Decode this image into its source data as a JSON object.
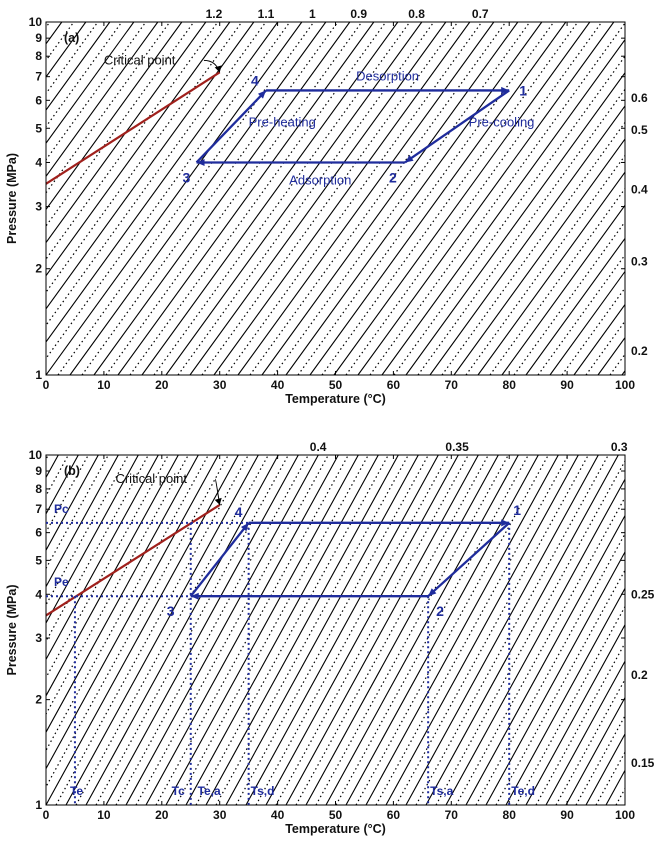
{
  "chart_data": [
    {
      "panel": "(a)",
      "type": "line",
      "xlabel": "Temperature (°C)",
      "ylabel": "Pressure (MPa)",
      "xlim": [
        0,
        100
      ],
      "ylim": [
        1,
        10
      ],
      "yscale": "log",
      "xticks": [
        "0",
        "10",
        "20",
        "30",
        "40",
        "50",
        "60",
        "70",
        "80",
        "90",
        "100"
      ],
      "yticks": [
        "1",
        "2",
        "3",
        "4",
        "5",
        "6",
        "7",
        "8",
        "9",
        "10"
      ],
      "top_labels": [
        "1.2",
        "1.1",
        "1",
        "0.9",
        "0.8",
        "0.7"
      ],
      "right_labels": [
        "0.6",
        "0.5",
        "0.4",
        "0.3",
        "0.2"
      ],
      "saturation_line": {
        "x": [
          0,
          30
        ],
        "y": [
          3.48,
          7.2
        ]
      },
      "critical_point": {
        "x": 30,
        "y": 7.2,
        "label": "Critical point"
      },
      "cycle": {
        "points": [
          {
            "label": "1",
            "x": 80,
            "y": 6.4
          },
          {
            "label": "2",
            "x": 62,
            "y": 4.0
          },
          {
            "label": "3",
            "x": 26,
            "y": 4.0
          },
          {
            "label": "4",
            "x": 38,
            "y": 6.4
          }
        ],
        "processes": [
          "Desorption",
          "Pre-cooling",
          "Adsorption",
          "Pre-heating"
        ]
      },
      "colors": {
        "cycle": "#1f2c9c",
        "saturation": "#a0201c",
        "isosteres": "#000000"
      }
    },
    {
      "panel": "(b)",
      "type": "line",
      "xlabel": "Temperature (°C)",
      "ylabel": "Pressure (MPa)",
      "xlim": [
        0,
        100
      ],
      "ylim": [
        1,
        10
      ],
      "yscale": "log",
      "xticks": [
        "0",
        "10",
        "20",
        "30",
        "40",
        "50",
        "60",
        "70",
        "80",
        "90",
        "100"
      ],
      "yticks": [
        "1",
        "2",
        "3",
        "4",
        "5",
        "6",
        "7",
        "8",
        "9",
        "10"
      ],
      "top_labels": [
        "0.4",
        "0.35",
        "0.3"
      ],
      "right_labels": [
        "0.25",
        "0.2",
        "0.15"
      ],
      "saturation_line": {
        "x": [
          0,
          30
        ],
        "y": [
          3.48,
          7.2
        ]
      },
      "critical_point": {
        "x": 30,
        "y": 7.2,
        "label": "Critical point"
      },
      "cycle": {
        "points": [
          {
            "label": "1",
            "x": 80,
            "y": 6.4
          },
          {
            "label": "2",
            "x": 66,
            "y": 3.95
          },
          {
            "label": "3",
            "x": 25,
            "y": 3.95
          },
          {
            "label": "4",
            "x": 35,
            "y": 6.4
          }
        ]
      },
      "pressure_markers": [
        {
          "label": "Pc",
          "y": 6.4
        },
        {
          "label": "Pe",
          "y": 3.95
        }
      ],
      "temperature_markers": [
        {
          "label": "Te",
          "x": 5
        },
        {
          "label": "Tc",
          "x": 25
        },
        {
          "label": "Te,a",
          "x": 26
        },
        {
          "label": "Ts,d",
          "x": 35
        },
        {
          "label": "Ts,a",
          "x": 66
        },
        {
          "label": "Te,d",
          "x": 80
        }
      ],
      "colors": {
        "cycle": "#1f2c9c",
        "saturation": "#a0201c",
        "isosteres": "#000000"
      }
    }
  ]
}
